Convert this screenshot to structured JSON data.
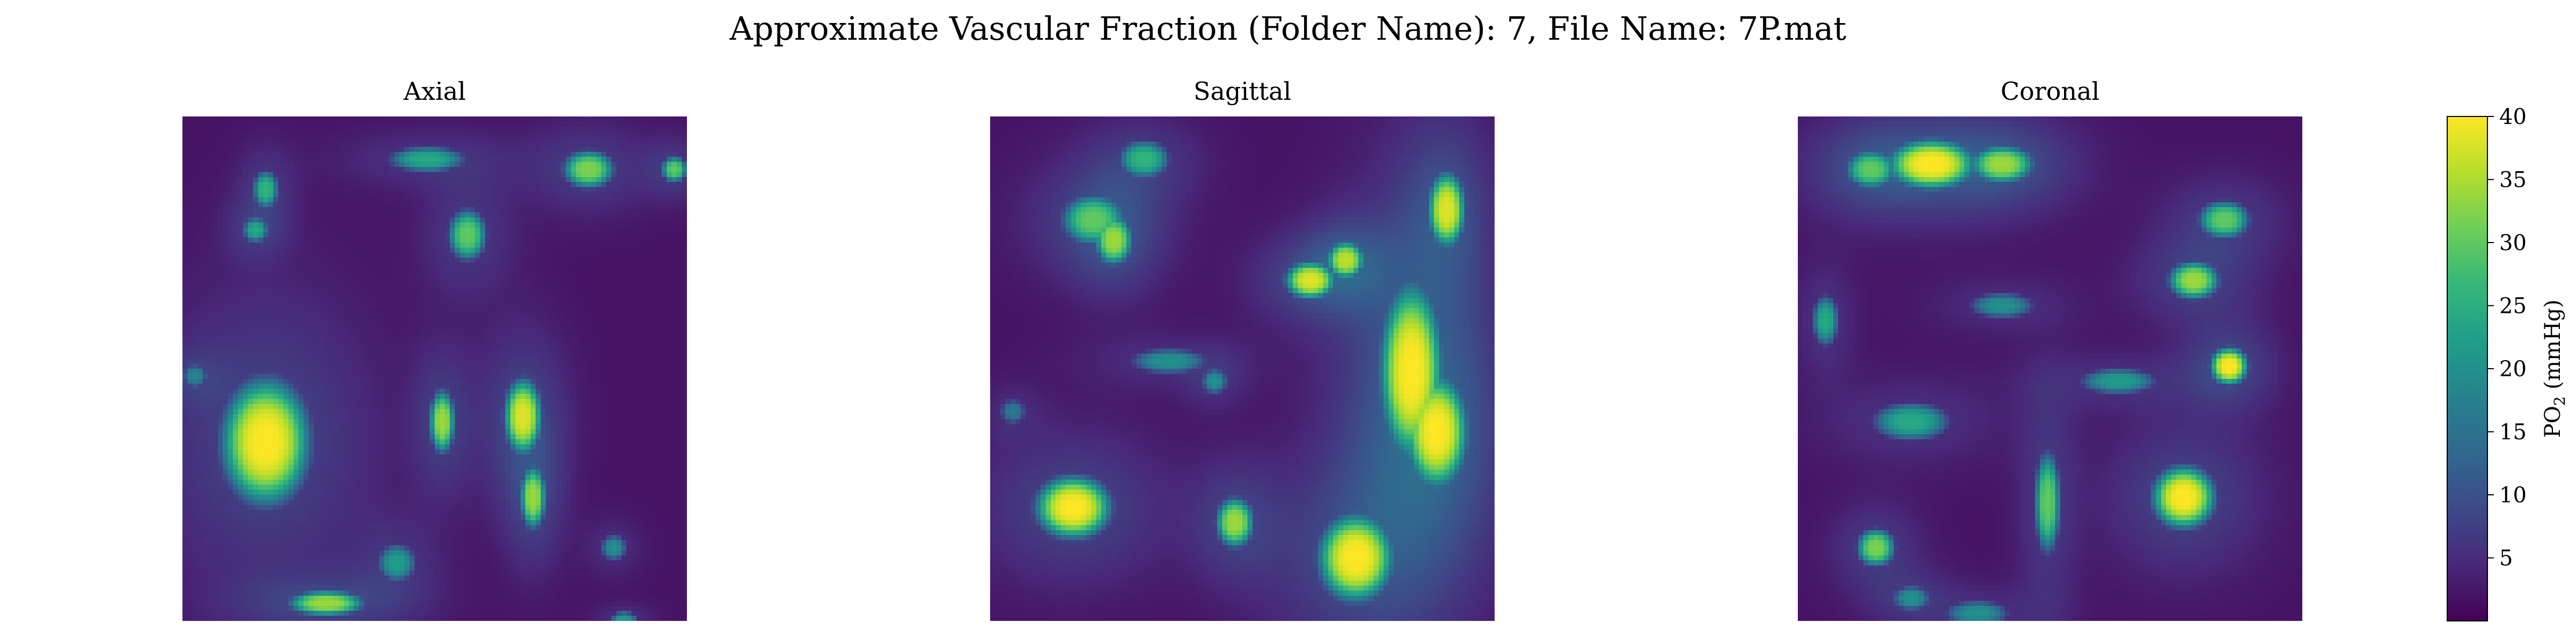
{
  "figure": {
    "suptitle": "Approximate Vascular Fraction (Folder Name): 7, File Name: 7P.mat"
  },
  "colors": {
    "background": "#ffffff",
    "cmap": [
      "#440154",
      "#482878",
      "#3e4989",
      "#31688e",
      "#26828e",
      "#1f9e89",
      "#35b779",
      "#6ece58",
      "#b5de2b",
      "#fde725"
    ]
  },
  "chart_data": [
    {
      "type": "heatmap",
      "title": "Axial",
      "colormap": "viridis",
      "vmin": 0,
      "vmax": 40,
      "grid_size": 100,
      "background_level": 2,
      "axes_visible": false,
      "blobs": [
        {
          "x": 16,
          "y": 64,
          "sx": 7,
          "sy": 10,
          "value": 40
        },
        {
          "x": 51,
          "y": 60,
          "sx": 2,
          "sy": 5,
          "value": 34
        },
        {
          "x": 67,
          "y": 59,
          "sx": 3,
          "sy": 6,
          "value": 38
        },
        {
          "x": 69,
          "y": 75,
          "sx": 2,
          "sy": 5,
          "value": 34
        },
        {
          "x": 56,
          "y": 23,
          "sx": 3,
          "sy": 4,
          "value": 30
        },
        {
          "x": 80,
          "y": 10,
          "sx": 4,
          "sy": 3,
          "value": 32
        },
        {
          "x": 97,
          "y": 10,
          "sx": 2,
          "sy": 2,
          "value": 30
        },
        {
          "x": 48,
          "y": 8,
          "sx": 6,
          "sy": 2,
          "value": 24
        },
        {
          "x": 16,
          "y": 14,
          "sx": 2,
          "sy": 3,
          "value": 26
        },
        {
          "x": 14,
          "y": 22,
          "sx": 2,
          "sy": 2,
          "value": 24
        },
        {
          "x": 28,
          "y": 96,
          "sx": 6,
          "sy": 2,
          "value": 34
        },
        {
          "x": 42,
          "y": 88,
          "sx": 3,
          "sy": 3,
          "value": 22
        },
        {
          "x": 85,
          "y": 85,
          "sx": 2,
          "sy": 2,
          "value": 20
        },
        {
          "x": 87,
          "y": 99,
          "sx": 2,
          "sy": 1,
          "value": 22
        },
        {
          "x": 2,
          "y": 51,
          "sx": 2,
          "sy": 2,
          "value": 18
        }
      ]
    },
    {
      "type": "heatmap",
      "title": "Sagittal",
      "colormap": "viridis",
      "vmin": 0,
      "vmax": 40,
      "grid_size": 100,
      "background_level": 2,
      "axes_visible": false,
      "blobs": [
        {
          "x": 83,
          "y": 50,
          "sx": 5,
          "sy": 14,
          "value": 40
        },
        {
          "x": 90,
          "y": 18,
          "sx": 3,
          "sy": 6,
          "value": 38
        },
        {
          "x": 88,
          "y": 62,
          "sx": 5,
          "sy": 9,
          "value": 40
        },
        {
          "x": 63,
          "y": 32,
          "sx": 4,
          "sy": 3,
          "value": 38
        },
        {
          "x": 70,
          "y": 28,
          "sx": 3,
          "sy": 3,
          "value": 36
        },
        {
          "x": 16,
          "y": 77,
          "sx": 6,
          "sy": 5,
          "value": 40
        },
        {
          "x": 72,
          "y": 87,
          "sx": 6,
          "sy": 7,
          "value": 40
        },
        {
          "x": 48,
          "y": 80,
          "sx": 3,
          "sy": 4,
          "value": 34
        },
        {
          "x": 20,
          "y": 20,
          "sx": 5,
          "sy": 4,
          "value": 30
        },
        {
          "x": 24,
          "y": 24,
          "sx": 3,
          "sy": 4,
          "value": 34
        },
        {
          "x": 30,
          "y": 8,
          "sx": 4,
          "sy": 3,
          "value": 26
        },
        {
          "x": 44,
          "y": 52,
          "sx": 2,
          "sy": 2,
          "value": 20
        },
        {
          "x": 35,
          "y": 48,
          "sx": 6,
          "sy": 2,
          "value": 20
        },
        {
          "x": 4,
          "y": 58,
          "sx": 2,
          "sy": 2,
          "value": 16
        }
      ]
    },
    {
      "type": "heatmap",
      "title": "Coronal",
      "colormap": "viridis",
      "vmin": 0,
      "vmax": 40,
      "grid_size": 100,
      "background_level": 2,
      "axes_visible": false,
      "blobs": [
        {
          "x": 26,
          "y": 9,
          "sx": 7,
          "sy": 4,
          "value": 40
        },
        {
          "x": 40,
          "y": 9,
          "sx": 5,
          "sy": 3,
          "value": 34
        },
        {
          "x": 14,
          "y": 10,
          "sx": 4,
          "sy": 3,
          "value": 30
        },
        {
          "x": 76,
          "y": 75,
          "sx": 5,
          "sy": 5,
          "value": 40
        },
        {
          "x": 85,
          "y": 49,
          "sx": 3,
          "sy": 3,
          "value": 40
        },
        {
          "x": 78,
          "y": 32,
          "sx": 4,
          "sy": 3,
          "value": 34
        },
        {
          "x": 84,
          "y": 20,
          "sx": 4,
          "sy": 3,
          "value": 30
        },
        {
          "x": 49,
          "y": 76,
          "sx": 2,
          "sy": 8,
          "value": 30
        },
        {
          "x": 15,
          "y": 85,
          "sx": 3,
          "sy": 3,
          "value": 32
        },
        {
          "x": 22,
          "y": 60,
          "sx": 6,
          "sy": 3,
          "value": 24
        },
        {
          "x": 5,
          "y": 40,
          "sx": 2,
          "sy": 4,
          "value": 24
        },
        {
          "x": 63,
          "y": 52,
          "sx": 6,
          "sy": 2,
          "value": 22
        },
        {
          "x": 40,
          "y": 37,
          "sx": 5,
          "sy": 2,
          "value": 20
        },
        {
          "x": 35,
          "y": 98,
          "sx": 5,
          "sy": 2,
          "value": 20
        },
        {
          "x": 22,
          "y": 95,
          "sx": 3,
          "sy": 2,
          "value": 20
        }
      ]
    }
  ],
  "colorbar": {
    "label_prefix": "PO",
    "label_subscript": "2",
    "label_suffix": " (mmHg)",
    "vmin": 0,
    "vmax": 40,
    "ticks": [
      5,
      10,
      15,
      20,
      25,
      30,
      35,
      40
    ],
    "tick_labels": [
      "5",
      "10",
      "15",
      "20",
      "25",
      "30",
      "35",
      "40"
    ]
  }
}
